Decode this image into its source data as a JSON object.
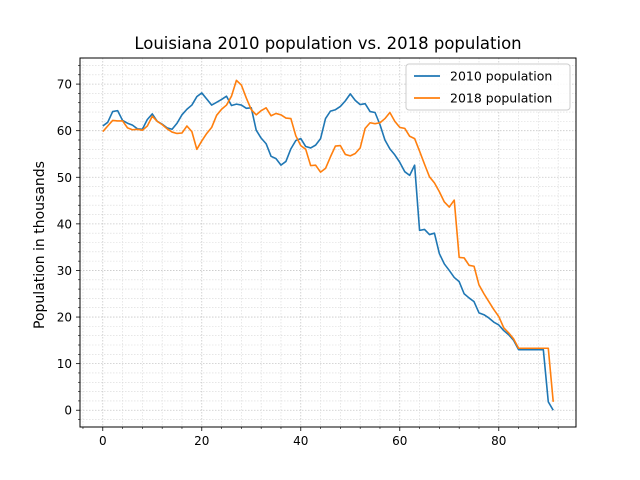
{
  "chart_data": {
    "type": "line",
    "title": "Louisiana 2010 population vs. 2018 population",
    "xlabel": "",
    "ylabel": "Population in thousands",
    "xlim": [
      -4.6,
      95.6
    ],
    "ylim": [
      -3.6,
      75.6
    ],
    "xticks": [
      0,
      20,
      40,
      60,
      80
    ],
    "yticks": [
      0,
      10,
      20,
      30,
      40,
      50,
      60,
      70
    ],
    "grid": true,
    "legend_position": "top-right",
    "x": [
      0,
      1,
      2,
      3,
      4,
      5,
      6,
      7,
      8,
      9,
      10,
      11,
      12,
      13,
      14,
      15,
      16,
      17,
      18,
      19,
      20,
      21,
      22,
      23,
      24,
      25,
      26,
      27,
      28,
      29,
      30,
      31,
      32,
      33,
      34,
      35,
      36,
      37,
      38,
      39,
      40,
      41,
      42,
      43,
      44,
      45,
      46,
      47,
      48,
      49,
      50,
      51,
      52,
      53,
      54,
      55,
      56,
      57,
      58,
      59,
      60,
      61,
      62,
      63,
      64,
      65,
      66,
      67,
      68,
      69,
      70,
      71,
      72,
      73,
      74,
      75,
      76,
      77,
      78,
      79,
      80,
      81,
      82,
      83,
      84,
      85,
      86,
      87,
      88,
      89,
      90,
      91
    ],
    "series": [
      {
        "name": "2010 population",
        "color": "#1f77b4",
        "values": [
          61.0,
          61.8,
          64.1,
          64.3,
          62.2,
          61.6,
          61.2,
          60.4,
          60.3,
          62.4,
          63.6,
          62.0,
          61.4,
          60.6,
          60.3,
          61.6,
          63.4,
          64.6,
          65.5,
          67.3,
          68.1,
          66.8,
          65.5,
          66.1,
          66.7,
          67.4,
          65.4,
          65.7,
          65.5,
          64.8,
          64.9,
          60.1,
          58.4,
          57.2,
          54.5,
          54.0,
          52.6,
          53.4,
          56.1,
          57.9,
          58.3,
          56.6,
          56.3,
          56.9,
          58.3,
          62.6,
          64.2,
          64.5,
          65.2,
          66.4,
          67.9,
          66.5,
          65.6,
          65.8,
          64.1,
          63.9,
          61.3,
          58.0,
          56.1,
          54.8,
          53.2,
          51.2,
          50.4,
          52.6,
          38.6,
          38.8,
          37.7,
          38.0,
          33.6,
          31.4,
          30.0,
          28.5,
          27.6,
          25.0,
          24.1,
          23.3,
          20.9,
          20.5,
          19.8,
          18.9,
          18.3,
          17.1,
          16.2,
          15.0,
          13.0,
          13.0,
          13.0,
          13.0,
          13.0,
          13.0,
          1.8,
          0.0
        ]
      },
      {
        "name": "2018 population",
        "color": "#ff7f0e",
        "values": [
          59.8,
          61.0,
          62.2,
          62.1,
          62.1,
          60.6,
          60.2,
          60.3,
          60.1,
          61.0,
          63.1,
          62.0,
          61.3,
          60.4,
          59.7,
          59.4,
          59.5,
          61.0,
          59.8,
          56.0,
          57.8,
          59.4,
          60.7,
          63.3,
          64.6,
          65.5,
          67.4,
          70.8,
          69.8,
          67.0,
          64.5,
          63.4,
          64.3,
          64.9,
          63.2,
          63.7,
          63.4,
          62.7,
          62.6,
          58.9,
          56.8,
          56.0,
          52.5,
          52.6,
          51.1,
          51.9,
          54.4,
          56.7,
          56.8,
          54.9,
          54.6,
          55.1,
          56.3,
          60.5,
          61.7,
          61.5,
          61.7,
          62.6,
          63.9,
          62.0,
          60.7,
          60.5,
          58.8,
          58.3,
          55.6,
          52.8,
          50.1,
          48.8,
          46.9,
          44.7,
          43.6,
          45.1,
          32.8,
          32.7,
          31.1,
          30.9,
          26.9,
          25.0,
          23.3,
          21.6,
          20.1,
          17.7,
          16.6,
          15.3,
          13.3,
          13.3,
          13.3,
          13.3,
          13.3,
          13.3,
          13.3,
          1.8
        ]
      }
    ]
  }
}
